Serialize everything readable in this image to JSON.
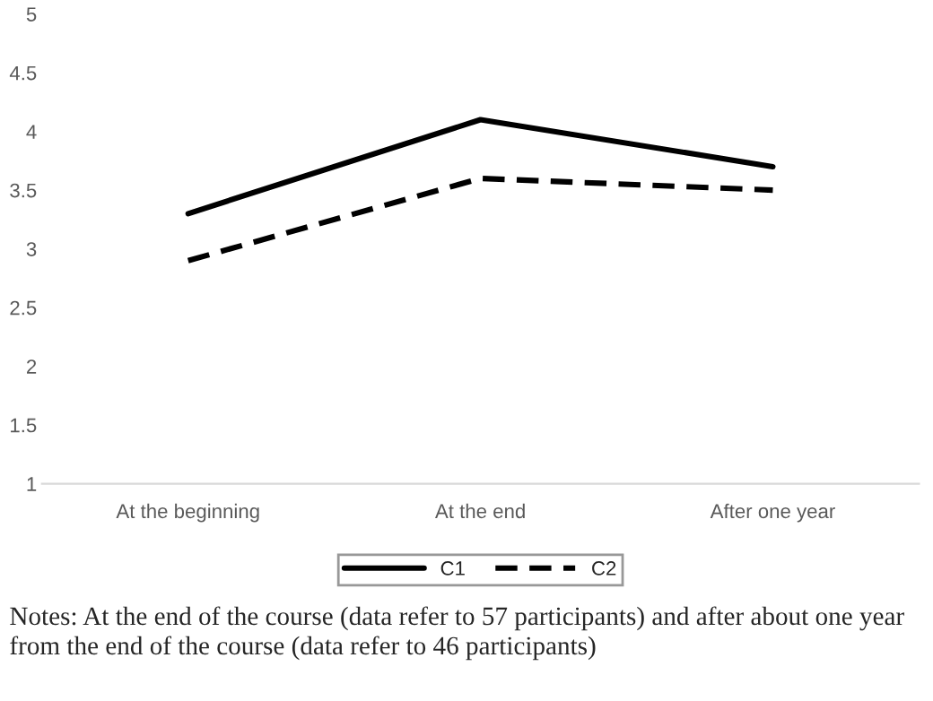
{
  "chart_data": {
    "type": "line",
    "categories": [
      "At the beginning",
      "At the end",
      "After one year"
    ],
    "series": [
      {
        "name": "C1",
        "color": "#000000",
        "values": [
          3.3,
          4.1,
          3.7
        ],
        "line_style": "solid"
      },
      {
        "name": "C2",
        "color": "#000000",
        "values": [
          2.9,
          3.6,
          3.5
        ],
        "line_style": "dashed"
      }
    ],
    "ylim": [
      1,
      5
    ],
    "yticks": [
      1,
      1.5,
      2,
      2.5,
      3,
      3.5,
      4,
      4.5,
      5
    ],
    "grid": false,
    "legend": "bottom",
    "marker": "none",
    "annotations": [
      "Notes: At the end of the course (data refer to 57 participants) and after about one year from the end of the course (data refer to 46 participants)"
    ]
  }
}
